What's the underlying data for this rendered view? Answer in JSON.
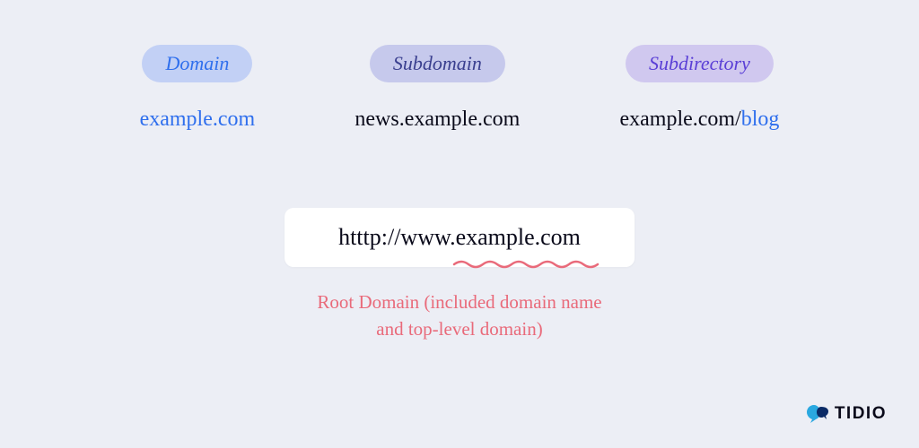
{
  "background_color": "#eceef5",
  "columns": [
    {
      "pill": {
        "label": "Domain",
        "bg": "#c2d0f5",
        "color": "#2f6fed"
      },
      "url": [
        {
          "text": "example.com",
          "color": "#2f6fed"
        }
      ]
    },
    {
      "pill": {
        "label": "Subdomain",
        "bg": "#c6c9ec",
        "color": "#3a3f8f"
      },
      "url": [
        {
          "text": "news",
          "color": "#0a0a1a"
        },
        {
          "text": ".example.com",
          "color": "#0a0a1a"
        }
      ]
    },
    {
      "pill": {
        "label": "Subdirectory",
        "bg": "#d0c8ef",
        "color": "#5a3fd6"
      },
      "url": [
        {
          "text": "example.com/",
          "color": "#0a0a1a"
        },
        {
          "text": "blog",
          "color": "#2f6fed"
        }
      ]
    }
  ],
  "address_bar": {
    "prefix": "htttp://www.",
    "highlight": "example.com",
    "bg": "#ffffff",
    "text_color": "#0a0a1a",
    "underline_color": "#e96a7a"
  },
  "caption": {
    "line1": "Root Domain (included domain name",
    "line2": "and top-level domain)",
    "color": "#e96a7a"
  },
  "logo": {
    "text": "TIDIO",
    "icon_colors": {
      "left": "#2aa8e0",
      "right": "#0a2a66"
    }
  }
}
